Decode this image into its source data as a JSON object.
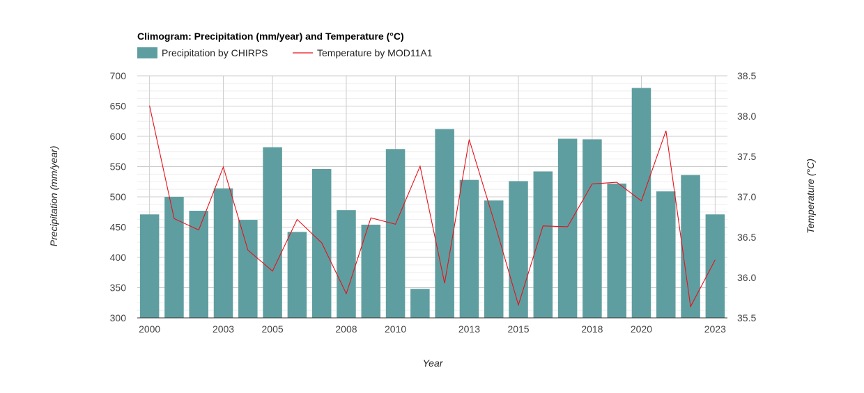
{
  "chart_data": {
    "type": "bar",
    "title": "Climogram: Precipitation (mm/year) and Temperature (°C)",
    "xlabel": "Year",
    "ylabel": "Precipitation (mm/year)",
    "y2label": "Temperature (°C)",
    "ylim": [
      300,
      700
    ],
    "y2lim": [
      35.5,
      38.5
    ],
    "yticks": [
      300,
      350,
      400,
      450,
      500,
      550,
      600,
      650,
      700
    ],
    "y2ticks": [
      "35.5",
      "36.0",
      "36.5",
      "37.0",
      "37.5",
      "38.0",
      "38.5"
    ],
    "xtick_labels": [
      "2000",
      "2003",
      "2005",
      "2008",
      "2010",
      "2013",
      "2015",
      "2018",
      "2020",
      "2023"
    ],
    "categories": [
      2000,
      2001,
      2002,
      2003,
      2004,
      2005,
      2006,
      2007,
      2008,
      2009,
      2010,
      2011,
      2012,
      2013,
      2014,
      2015,
      2016,
      2017,
      2018,
      2019,
      2020,
      2021,
      2022,
      2023
    ],
    "series": [
      {
        "name": "Precipitation by CHIRPS",
        "type": "bar",
        "axis": "left",
        "color": "#5f9ea0",
        "values": [
          471,
          500,
          477,
          514,
          462,
          582,
          442,
          546,
          478,
          454,
          579,
          348,
          612,
          528,
          494,
          526,
          542,
          596,
          595,
          522,
          680,
          509,
          536,
          471
        ]
      },
      {
        "name": "Temperature by MOD11A1",
        "type": "line",
        "axis": "right",
        "color": "#e8101a",
        "values": [
          38.13,
          36.73,
          36.59,
          37.37,
          36.34,
          36.08,
          36.72,
          36.43,
          35.8,
          36.74,
          36.66,
          37.38,
          35.93,
          37.71,
          36.71,
          35.66,
          36.64,
          36.63,
          37.16,
          37.18,
          36.95,
          37.82,
          35.64,
          36.22
        ]
      }
    ],
    "grid": true,
    "legend": "top-left"
  }
}
